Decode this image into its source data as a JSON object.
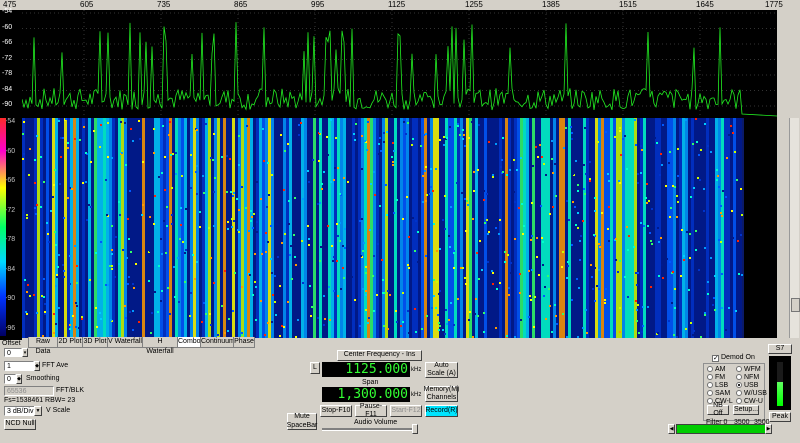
{
  "freq_axis": {
    "ticks": [
      "475",
      "605",
      "735",
      "865",
      "995",
      "1125",
      "1255",
      "1385",
      "1515",
      "1645",
      "1775"
    ]
  },
  "amp_axis": {
    "spectrum_ticks": [
      "-54",
      "-60",
      "-66",
      "-72",
      "-78",
      "-84",
      "-90"
    ],
    "colorbar_ticks": [
      "-54",
      "-60",
      "-66",
      "-72",
      "-78",
      "-84",
      "-90",
      "-96"
    ]
  },
  "tabs": [
    "Raw Data",
    "2D Plot",
    "3D Plot",
    "V Waterfall",
    "H Waterfall",
    "Combo",
    "Continuum",
    "Phase"
  ],
  "active_tab": "Combo",
  "left_controls": {
    "offset_label": "Offset",
    "offset_value": "0",
    "fft_ave_value": "1",
    "fft_ave_label": "FFT Ave",
    "smoothing_value": "0",
    "smoothing_label": "Smoothing",
    "fft_blk_value": "65536",
    "fft_blk_label": "FFT/BLK",
    "fs_info": "Fs=1538461 RBW= 23",
    "vscale_value": "3 dB/Div",
    "vscale_label": "V Scale",
    "ncd_null": "NCD Null"
  },
  "center_controls": {
    "l_button": "L",
    "center_freq_label": "Center Frequency - Ins",
    "center_freq_value": "1125.000",
    "center_freq_unit": "kHz",
    "auto_scale": "Auto Scale (A)",
    "span_label": "Span",
    "span_value": "1,300.000",
    "span_unit": "kHz",
    "memory_channels": "Memory(M) Channels",
    "mute": "Mute SpaceBar",
    "stop": "Stop-F10",
    "pause": "Pause-F11",
    "start": "Start-F12",
    "record": "Record(R)",
    "audio_volume": "Audio Volume"
  },
  "demod": {
    "demod_on_label": "Demod On",
    "modes": [
      "AM",
      "WFM",
      "FM",
      "NFM",
      "LSB",
      "USB",
      "SAM",
      "W/USB",
      "CW-L",
      "CW-U"
    ],
    "selected_mode": "USB",
    "nb_off": "NB Off",
    "setup": "Setup...",
    "filter_label": "Filter",
    "filter_low": "0",
    "filter_mid": "3500",
    "filter_high": "3500"
  },
  "meter": {
    "s_reading": "S7",
    "peak": "Peak",
    "level": 0.55
  }
}
